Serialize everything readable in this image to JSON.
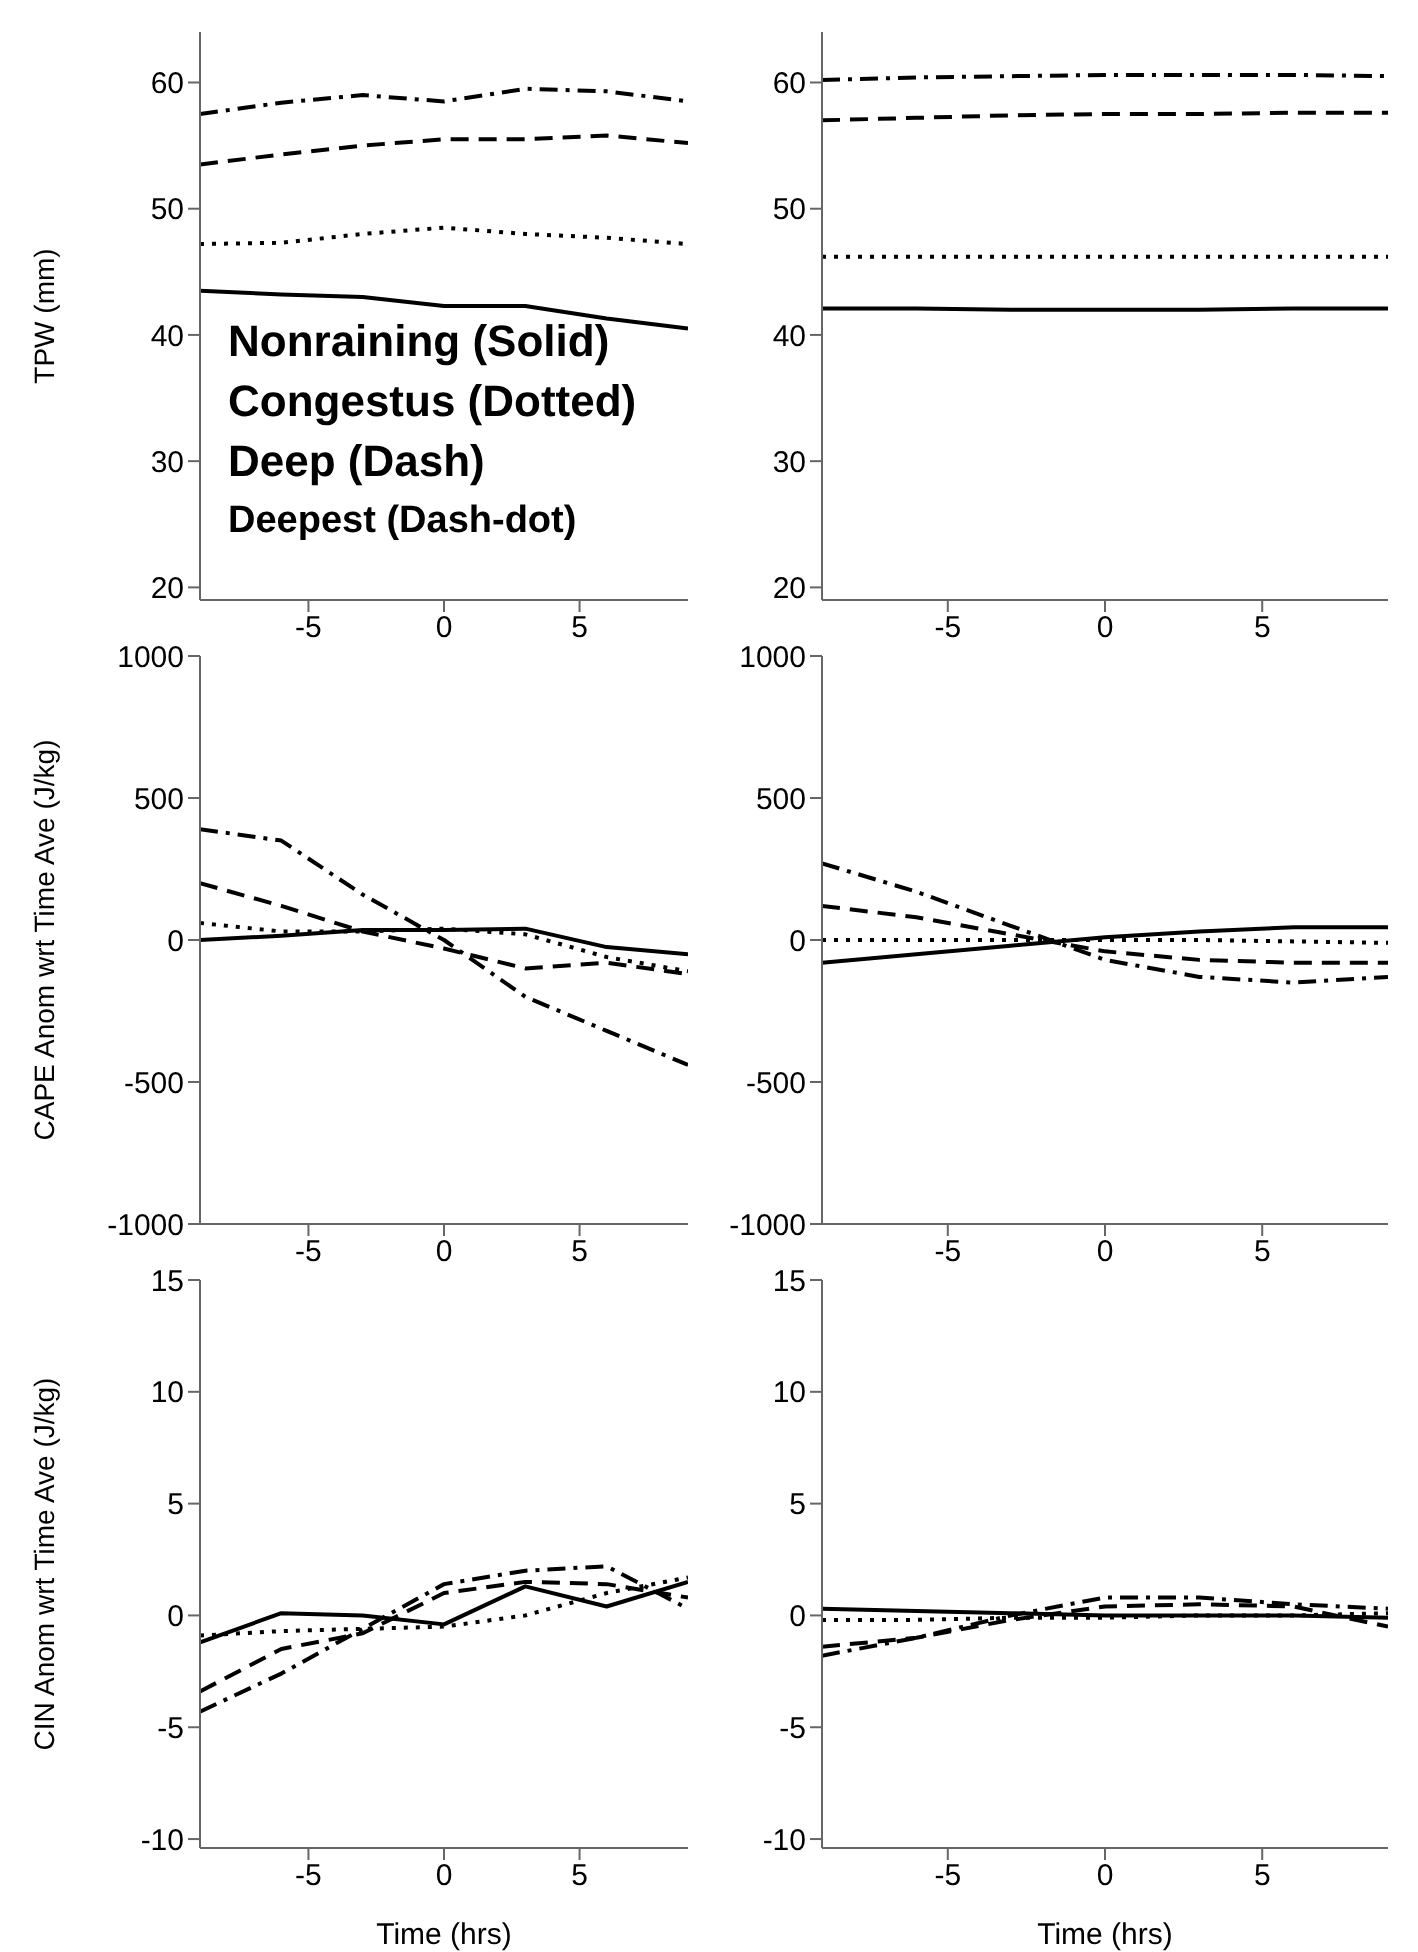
{
  "chart_data": [
    {
      "type": "line",
      "ylabel": "TPW (mm)",
      "x": [
        -9,
        -6,
        -3,
        0,
        3,
        6,
        9
      ],
      "xlim": [
        -9,
        9
      ],
      "xticks": [
        -5,
        0,
        5
      ],
      "ylim": [
        19,
        64
      ],
      "yticks": [
        20,
        30,
        40,
        50,
        60
      ],
      "series": [
        {
          "color": "#000000",
          "line_style": "solid",
          "values": [
            43.5,
            43.2,
            43,
            42.3,
            42.3,
            41.3,
            40.5
          ]
        },
        {
          "color": "#000000",
          "line_style": "dotted",
          "values": [
            47.2,
            47.3,
            48,
            48.5,
            48,
            47.7,
            47.2
          ]
        },
        {
          "color": "#000000",
          "line_style": "dashed",
          "values": [
            53.5,
            54.3,
            55,
            55.5,
            55.5,
            55.8,
            55.2
          ]
        },
        {
          "color": "#000000",
          "line_style": "dashdot",
          "values": [
            57.5,
            58.4,
            59,
            58.5,
            59.5,
            59.3,
            58.5
          ]
        }
      ],
      "annotations": [
        "Nonraining (Solid)",
        "Congestus (Dotted)",
        "Deep (Dash)",
        "Deepest (Dash-dot)"
      ]
    },
    {
      "type": "line",
      "x": [
        -9,
        -6,
        -3,
        0,
        3,
        6,
        9
      ],
      "xlim": [
        -9,
        9
      ],
      "xticks": [
        -5,
        0,
        5
      ],
      "ylim": [
        19,
        64
      ],
      "yticks": [
        20,
        30,
        40,
        50,
        60
      ],
      "series": [
        {
          "color": "#000000",
          "line_style": "solid",
          "values": [
            42.1,
            42.1,
            42,
            42,
            42,
            42.1,
            42.1
          ]
        },
        {
          "color": "#000000",
          "line_style": "dotted",
          "values": [
            46.2,
            46.2,
            46.2,
            46.2,
            46.2,
            46.2,
            46.2
          ]
        },
        {
          "color": "#000000",
          "line_style": "dashed",
          "values": [
            57,
            57.2,
            57.4,
            57.5,
            57.5,
            57.6,
            57.6
          ]
        },
        {
          "color": "#000000",
          "line_style": "dashdot",
          "values": [
            60.2,
            60.4,
            60.5,
            60.6,
            60.6,
            60.6,
            60.5
          ]
        }
      ]
    },
    {
      "type": "line",
      "ylabel": "CAPE Anom wrt Time Ave (J/kg)",
      "x": [
        -9,
        -6,
        -3,
        0,
        3,
        6,
        9
      ],
      "xlim": [
        -9,
        9
      ],
      "xticks": [
        -5,
        0,
        5
      ],
      "ylim": [
        -1000,
        1000
      ],
      "yticks": [
        -1000,
        -500,
        0,
        500,
        1000
      ],
      "series": [
        {
          "color": "#000000",
          "line_style": "solid",
          "values": [
            0,
            15,
            35,
            35,
            40,
            -25,
            -50
          ]
        },
        {
          "color": "#000000",
          "line_style": "dotted",
          "values": [
            60,
            30,
            30,
            40,
            20,
            -60,
            -110
          ]
        },
        {
          "color": "#000000",
          "line_style": "dashed",
          "values": [
            200,
            120,
            30,
            -30,
            -100,
            -80,
            -120
          ]
        },
        {
          "color": "#000000",
          "line_style": "dashdot",
          "values": [
            390,
            350,
            160,
            0,
            -200,
            -320,
            -440
          ]
        }
      ]
    },
    {
      "type": "line",
      "x": [
        -9,
        -6,
        -3,
        0,
        3,
        6,
        9
      ],
      "xlim": [
        -9,
        9
      ],
      "xticks": [
        -5,
        0,
        5
      ],
      "ylim": [
        -1000,
        1000
      ],
      "yticks": [
        -1000,
        -500,
        0,
        500,
        1000
      ],
      "series": [
        {
          "color": "#000000",
          "line_style": "solid",
          "values": [
            -80,
            -50,
            -20,
            10,
            30,
            45,
            45
          ]
        },
        {
          "color": "#000000",
          "line_style": "dotted",
          "values": [
            0,
            0,
            0,
            0,
            0,
            -5,
            -10
          ]
        },
        {
          "color": "#000000",
          "line_style": "dashed",
          "values": [
            120,
            80,
            20,
            -40,
            -70,
            -80,
            -80
          ]
        },
        {
          "color": "#000000",
          "line_style": "dashdot",
          "values": [
            270,
            170,
            50,
            -70,
            -130,
            -150,
            -130
          ]
        }
      ]
    },
    {
      "type": "line",
      "ylabel": "CIN Anom wrt Time Ave (J/kg)",
      "xlabel": "Time (hrs)",
      "x": [
        -9,
        -6,
        -3,
        0,
        3,
        6,
        9
      ],
      "xlim": [
        -9,
        9
      ],
      "xticks": [
        -5,
        0,
        5
      ],
      "ylim": [
        -10.4,
        15
      ],
      "yticks": [
        -10,
        -5,
        0,
        5,
        10,
        15
      ],
      "series": [
        {
          "color": "#000000",
          "line_style": "solid",
          "values": [
            -1.2,
            0.1,
            0,
            -0.4,
            1.3,
            0.4,
            1.5
          ]
        },
        {
          "color": "#000000",
          "line_style": "dotted",
          "values": [
            -0.9,
            -0.7,
            -0.6,
            -0.5,
            0,
            1,
            1.7
          ]
        },
        {
          "color": "#000000",
          "line_style": "dashed",
          "values": [
            -3.4,
            -1.5,
            -0.8,
            1,
            1.5,
            1.4,
            0.8
          ]
        },
        {
          "color": "#000000",
          "line_style": "dashdot",
          "values": [
            -4.3,
            -2.6,
            -0.6,
            1.4,
            2,
            2.2,
            0.3
          ]
        }
      ]
    },
    {
      "type": "line",
      "xlabel": "Time (hrs)",
      "x": [
        -9,
        -6,
        -3,
        0,
        3,
        6,
        9
      ],
      "xlim": [
        -9,
        9
      ],
      "xticks": [
        -5,
        0,
        5
      ],
      "ylim": [
        -10.4,
        15
      ],
      "yticks": [
        -10,
        -5,
        0,
        5,
        10,
        15
      ],
      "series": [
        {
          "color": "#000000",
          "line_style": "solid",
          "values": [
            0.3,
            0.2,
            0.1,
            0,
            0,
            0,
            -0.1
          ]
        },
        {
          "color": "#000000",
          "line_style": "dotted",
          "values": [
            -0.2,
            -0.2,
            -0.1,
            -0.1,
            0,
            0,
            0.1
          ]
        },
        {
          "color": "#000000",
          "line_style": "dashed",
          "values": [
            -1.4,
            -1,
            -0.2,
            0.4,
            0.5,
            0.4,
            -0.5
          ]
        },
        {
          "color": "#000000",
          "line_style": "dashdot",
          "values": [
            -1.8,
            -1,
            0,
            0.8,
            0.8,
            0.5,
            0.3
          ]
        }
      ]
    }
  ]
}
